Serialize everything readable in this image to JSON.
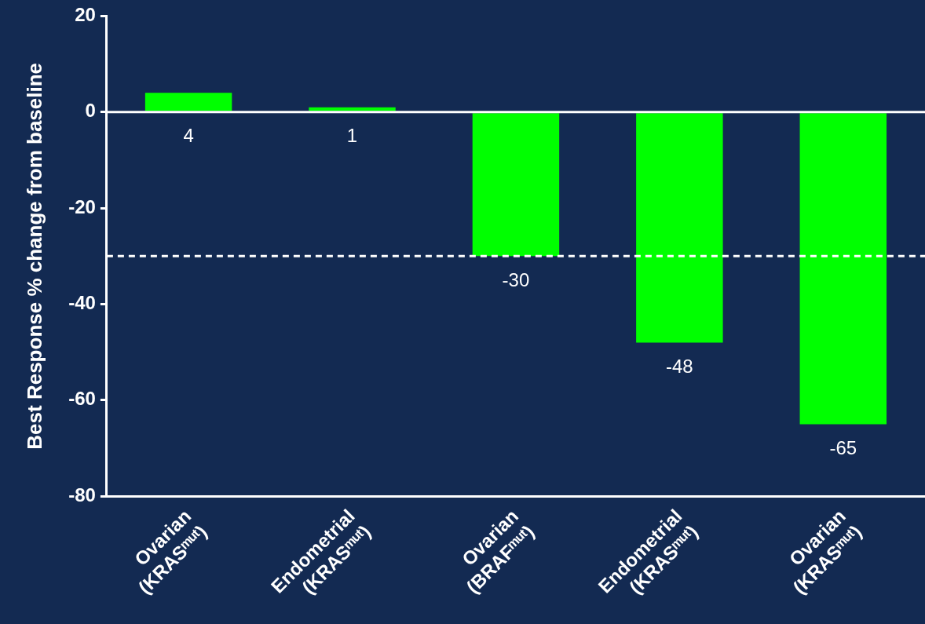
{
  "chart_data": {
    "type": "bar",
    "ylabel": "Best Response % change from baseline",
    "categories": [
      "Ovarian (KRASᵐᵘᵗ)",
      "Endometrial (KRASᵐᵘᵗ)",
      "Ovarian (BRAFᵐᵘᵗ)",
      "Endometrial (KRASᵐᵘᵗ)",
      "Ovarian (KRASᵐᵘᵗ)"
    ],
    "values": [
      4,
      1,
      -30,
      -48,
      -65
    ],
    "color": "#00ff00",
    "data_labels": true,
    "ylim": [
      -80,
      20
    ],
    "yticks": [
      -80,
      -60,
      -40,
      -20,
      0,
      20
    ],
    "ref_lines": [
      {
        "axis": "y",
        "value": 0,
        "color": "#ffffff",
        "line_style": "solid"
      },
      {
        "axis": "y",
        "value": -30,
        "color": "#ffffff",
        "line_style": "dashed"
      }
    ],
    "grid": false,
    "legend": false
  }
}
